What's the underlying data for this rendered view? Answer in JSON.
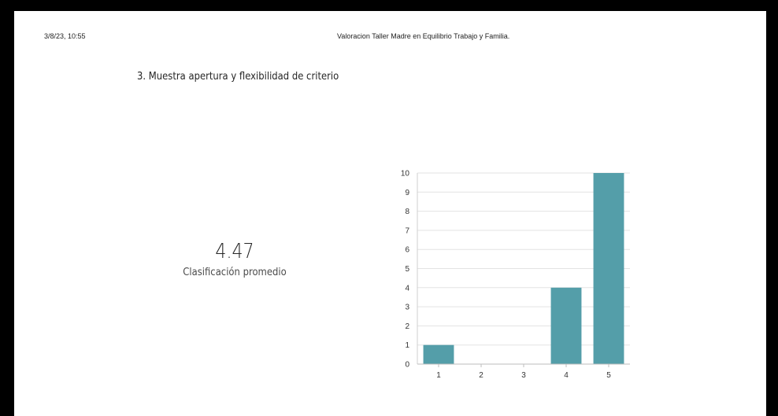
{
  "header": {
    "date": "3/8/23, 10:55",
    "title": "Valoracion Taller Madre en Equilibrio Trabajo y Familia."
  },
  "question": {
    "text": "3.  Muestra apertura y flexibilidad de criterio"
  },
  "summary": {
    "average": "4.47",
    "label": "Clasificación promedio"
  },
  "chart_data": {
    "type": "bar",
    "categories": [
      "1",
      "2",
      "3",
      "4",
      "5"
    ],
    "values": [
      1,
      0,
      0,
      4,
      10
    ],
    "title": "",
    "xlabel": "",
    "ylabel": "",
    "ylim": [
      0,
      10
    ],
    "yticks": [
      0,
      1,
      2,
      3,
      4,
      5,
      6,
      7,
      8,
      9,
      10
    ],
    "grid": true,
    "bar_color": "#549ea9",
    "grid_color": "#e3e3e3"
  }
}
